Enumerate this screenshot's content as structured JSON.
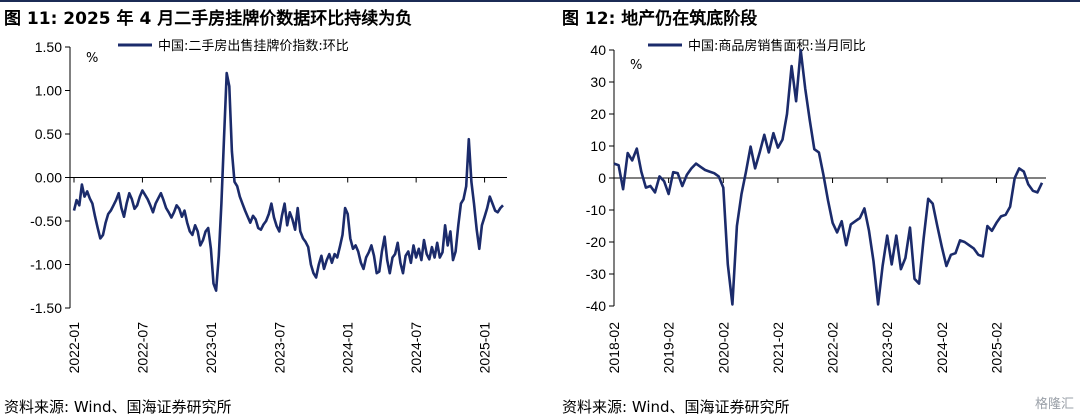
{
  "header": {
    "left_title": "图 11:  2025 年 4 月二手房挂牌价数据环比持续为负",
    "right_title": "图 12:  地产仍在筑底阶段"
  },
  "footer": {
    "left_source": "资料来源:  Wind、国海证券研究所",
    "right_source": "资料来源:  Wind、国海证券研究所"
  },
  "watermark": {
    "text": "格隆汇"
  },
  "colors": {
    "line": "#1b2b6b",
    "axis": "#000000",
    "topbar": "#1b2b55"
  },
  "chart_data": [
    {
      "type": "line",
      "ylabel": "%",
      "ylim": [
        -1.5,
        1.5
      ],
      "yticks": [
        "1.50",
        "1.00",
        "0.50",
        "0.00",
        "-0.50",
        "-1.00",
        "-1.50"
      ],
      "ytick_values": [
        1.5,
        1.0,
        0.5,
        0.0,
        -0.5,
        -1.0,
        -1.5
      ],
      "xticks": [
        "2022-01",
        "2022-07",
        "2023-01",
        "2023-07",
        "2024-01",
        "2024-07",
        "2025-01"
      ],
      "xtick_index": [
        0,
        26,
        52,
        78,
        104,
        130,
        156
      ],
      "series": [
        {
          "name": "中国:二手房出售挂牌价指数:环比",
          "values": [
            -0.38,
            -0.26,
            -0.32,
            -0.08,
            -0.22,
            -0.16,
            -0.24,
            -0.3,
            -0.45,
            -0.58,
            -0.7,
            -0.66,
            -0.52,
            -0.42,
            -0.38,
            -0.32,
            -0.26,
            -0.18,
            -0.35,
            -0.45,
            -0.3,
            -0.18,
            -0.25,
            -0.36,
            -0.32,
            -0.22,
            -0.15,
            -0.2,
            -0.25,
            -0.32,
            -0.4,
            -0.3,
            -0.24,
            -0.18,
            -0.26,
            -0.35,
            -0.4,
            -0.46,
            -0.4,
            -0.32,
            -0.36,
            -0.45,
            -0.38,
            -0.52,
            -0.62,
            -0.66,
            -0.55,
            -0.62,
            -0.78,
            -0.72,
            -0.62,
            -0.58,
            -0.82,
            -1.22,
            -1.3,
            -0.9,
            -0.3,
            0.45,
            1.2,
            1.05,
            0.3,
            -0.05,
            -0.1,
            -0.22,
            -0.3,
            -0.38,
            -0.45,
            -0.52,
            -0.44,
            -0.48,
            -0.58,
            -0.6,
            -0.54,
            -0.5,
            -0.42,
            -0.3,
            -0.46,
            -0.56,
            -0.62,
            -0.44,
            -0.3,
            -0.55,
            -0.4,
            -0.48,
            -0.6,
            -0.35,
            -0.62,
            -0.7,
            -0.74,
            -0.8,
            -1.0,
            -1.1,
            -1.15,
            -1.0,
            -0.9,
            -1.05,
            -0.95,
            -0.88,
            -0.98,
            -0.88,
            -0.92,
            -0.8,
            -0.66,
            -0.35,
            -0.42,
            -0.7,
            -0.82,
            -0.78,
            -0.85,
            -0.98,
            -1.05,
            -0.92,
            -0.86,
            -0.78,
            -0.9,
            -1.1,
            -1.08,
            -0.85,
            -0.68,
            -0.95,
            -1.1,
            -0.92,
            -0.88,
            -0.75,
            -0.98,
            -1.1,
            -0.9,
            -0.85,
            -0.98,
            -0.78,
            -0.92,
            -0.82,
            -0.95,
            -0.72,
            -0.88,
            -0.94,
            -0.8,
            -0.92,
            -0.75,
            -0.92,
            -0.86,
            -0.55,
            -0.78,
            -0.62,
            -0.95,
            -0.85,
            -0.55,
            -0.3,
            -0.25,
            -0.1,
            0.44,
            -0.05,
            -0.3,
            -0.6,
            -0.82,
            -0.55,
            -0.45,
            -0.35,
            -0.22,
            -0.3,
            -0.38,
            -0.4,
            -0.35,
            -0.32
          ]
        }
      ]
    },
    {
      "type": "line",
      "ylabel": "%",
      "ylim": [
        -40,
        40
      ],
      "yticks": [
        "40",
        "30",
        "20",
        "10",
        "0",
        "-10",
        "-20",
        "-30",
        "-40"
      ],
      "ytick_values": [
        40,
        30,
        20,
        10,
        0,
        -10,
        -20,
        -30,
        -40
      ],
      "xticks": [
        "2018-02",
        "2019-02",
        "2020-02",
        "2021-02",
        "2022-02",
        "2023-02",
        "2024-02",
        "2025-02"
      ],
      "xtick_index": [
        0,
        12,
        24,
        36,
        48,
        60,
        72,
        84
      ],
      "series": [
        {
          "name": "中国:商品房销售面积:当月同比",
          "values": [
            4.5,
            4,
            -3.5,
            7.8,
            5.5,
            9.2,
            2,
            -3,
            -2.5,
            -4.5,
            0.5,
            -1,
            -5,
            1.8,
            1.5,
            -2.5,
            1,
            3,
            4.5,
            3.5,
            2.5,
            2,
            1.5,
            0.5,
            -3,
            -27,
            -39.5,
            -15,
            -5,
            2,
            9.8,
            3,
            8,
            13.5,
            8,
            14,
            9.5,
            12,
            20,
            35,
            24,
            40,
            28,
            18,
            9,
            8,
            1,
            -7,
            -14,
            -17,
            -13.5,
            -21,
            -14.5,
            -13.5,
            -12.5,
            -9.5,
            -16.5,
            -26,
            -39.5,
            -27.5,
            -18,
            -27,
            -18,
            -28.5,
            -25,
            -15.5,
            -31.5,
            -33,
            -19,
            -6.5,
            -8,
            -15,
            -21.5,
            -27.5,
            -24,
            -23.5,
            -19.5,
            -20,
            -21,
            -22,
            -24,
            -24.5,
            -15,
            -16.5,
            -14,
            -12,
            -11.5,
            -9,
            0,
            3,
            2,
            -2,
            -4,
            -4.5,
            -1.5
          ]
        }
      ]
    }
  ]
}
